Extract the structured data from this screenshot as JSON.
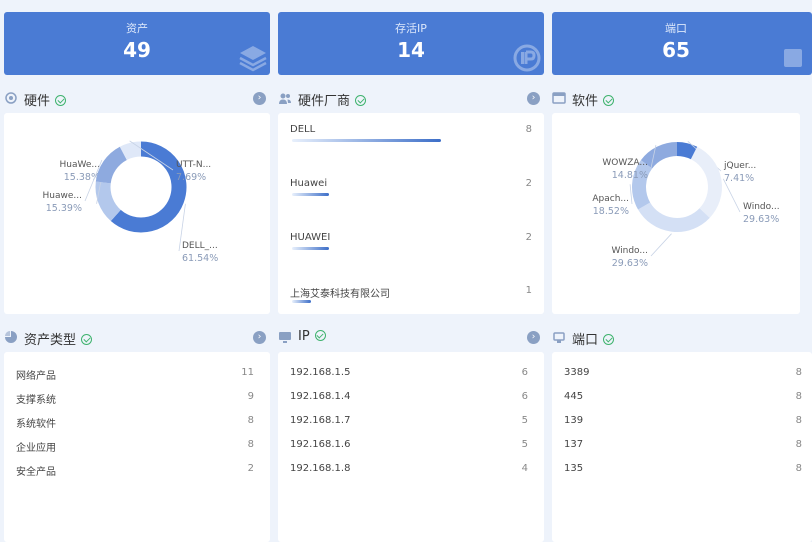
{
  "stats": [
    {
      "label": "资产",
      "value": "49"
    },
    {
      "label": "存活IP",
      "value": "14"
    },
    {
      "label": "端口",
      "value": "65"
    }
  ],
  "hardware": {
    "title": "硬件",
    "chart_data": {
      "type": "pie",
      "categories": [
        "DELL_...",
        "HuaWe...",
        "Huawe...",
        "UTT-N..."
      ],
      "series": [
        {
          "values": [
            61.54,
            15.38,
            15.39,
            7.69
          ]
        }
      ],
      "labels": [
        "61.54%",
        "15.38%",
        "15.39%",
        "7.69%"
      ],
      "colors": [
        "#4a7bd4",
        "#b3c8ec",
        "#8eaadf",
        "#dfe8f8"
      ]
    }
  },
  "vendor": {
    "title": "硬件厂商",
    "items": [
      {
        "name": "DELL",
        "value": 8
      },
      {
        "name": "Huawei",
        "value": 2
      },
      {
        "name": "HUAWEI",
        "value": 2
      },
      {
        "name": "上海艾泰科技有限公司",
        "value": 1
      }
    ]
  },
  "software": {
    "title": "软件",
    "chart_data": {
      "type": "pie",
      "categories": [
        "jQuer...",
        "Windo...",
        "Windo...",
        "Apach...",
        "WOWZA..."
      ],
      "series": [
        {
          "values": [
            7.41,
            29.63,
            29.63,
            18.52,
            14.81
          ]
        }
      ],
      "labels": [
        "7.41%",
        "29.63%",
        "29.63%",
        "18.52%",
        "14.81%"
      ],
      "colors": [
        "#4a7bd4",
        "#e8eef9",
        "#d4e0f5",
        "#b3c8ec",
        "#8eaadf"
      ]
    }
  },
  "asset_types": {
    "title": "资产类型",
    "items": [
      {
        "name": "网络产品",
        "value": 11
      },
      {
        "name": "支撑系统",
        "value": 9
      },
      {
        "name": "系统软件",
        "value": 8
      },
      {
        "name": "企业应用",
        "value": 8
      },
      {
        "name": "安全产品",
        "value": 2
      }
    ]
  },
  "ip": {
    "title": "IP",
    "items": [
      {
        "name": "192.168.1.5",
        "value": 6
      },
      {
        "name": "192.168.1.4",
        "value": 6
      },
      {
        "name": "192.168.1.7",
        "value": 5
      },
      {
        "name": "192.168.1.6",
        "value": 5
      },
      {
        "name": "192.168.1.8",
        "value": 4
      }
    ]
  },
  "ports": {
    "title": "端口",
    "items": [
      {
        "name": "3389",
        "value": 8
      },
      {
        "name": "445",
        "value": 8
      },
      {
        "name": "139",
        "value": 8
      },
      {
        "name": "137",
        "value": 8
      },
      {
        "name": "135",
        "value": 8
      }
    ]
  }
}
